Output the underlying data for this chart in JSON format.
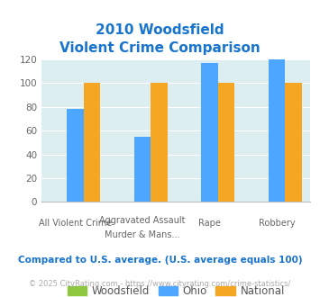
{
  "title_line1": "2010 Woodsfield",
  "title_line2": "Violent Crime Comparison",
  "title_color": "#1874cd",
  "cat_labels_top": [
    "",
    "Aggravated Assault",
    "",
    ""
  ],
  "cat_labels_bot": [
    "All Violent Crime",
    "Murder & Mans...",
    "Rape",
    "Robbery"
  ],
  "woodsfield": [
    0,
    0,
    0,
    0
  ],
  "ohio": [
    78,
    55,
    117,
    120
  ],
  "national": [
    100,
    100,
    100,
    100
  ],
  "woodsfield_color": "#8dc63f",
  "ohio_color": "#4da6ff",
  "national_color": "#f5a623",
  "plot_bg": "#ddeef0",
  "ylim": [
    0,
    120
  ],
  "yticks": [
    0,
    20,
    40,
    60,
    80,
    100,
    120
  ],
  "legend_labels": [
    "Woodsfield",
    "Ohio",
    "National"
  ],
  "footnote1": "Compared to U.S. average. (U.S. average equals 100)",
  "footnote2": "© 2025 CityRating.com - https://www.cityrating.com/crime-statistics/",
  "footnote1_color": "#1874cd",
  "footnote2_color": "#aaaaaa"
}
